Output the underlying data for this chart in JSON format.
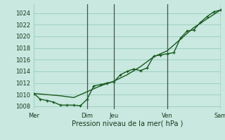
{
  "xlabel": "Pression niveau de la mer( hPa )",
  "background_color": "#c8e8e0",
  "grid_color": "#99ccbb",
  "line_color": "#1a5a20",
  "vline_color": "#445544",
  "ylim": [
    1007.5,
    1025.5
  ],
  "yticks": [
    1008,
    1010,
    1012,
    1014,
    1016,
    1018,
    1020,
    1022,
    1024
  ],
  "xlim": [
    0,
    84
  ],
  "xtick_labels": [
    "Mer",
    "Dim",
    "Jeu",
    "Ven",
    "Sam"
  ],
  "xtick_positions": [
    0,
    24,
    36,
    60,
    84
  ],
  "vlines": [
    24,
    36,
    60,
    84
  ],
  "smooth_x": [
    0,
    6,
    12,
    18,
    24,
    30,
    36,
    42,
    48,
    54,
    60,
    66,
    72,
    78,
    84
  ],
  "smooth_y": [
    1010.2,
    1010.0,
    1009.8,
    1009.5,
    1010.5,
    1011.5,
    1012.3,
    1013.4,
    1014.8,
    1016.5,
    1017.5,
    1019.5,
    1021.5,
    1023.0,
    1024.5
  ],
  "marker_x": [
    0,
    3,
    6,
    9,
    12,
    15,
    18,
    21,
    24,
    27,
    30,
    33,
    36,
    39,
    42,
    45,
    48,
    51,
    54,
    57,
    60,
    63,
    66,
    69,
    72,
    75,
    78,
    81,
    84
  ],
  "marker_y": [
    1010.2,
    1009.2,
    1009.0,
    1008.7,
    1008.2,
    1008.2,
    1008.2,
    1008.1,
    1009.2,
    1011.5,
    1011.7,
    1012.0,
    1012.2,
    1013.4,
    1014.0,
    1014.4,
    1014.1,
    1014.6,
    1016.6,
    1016.8,
    1017.0,
    1017.2,
    1019.7,
    1020.9,
    1021.1,
    1022.4,
    1023.4,
    1024.2,
    1024.5
  ],
  "line_width": 1.0,
  "marker_size": 3.5
}
